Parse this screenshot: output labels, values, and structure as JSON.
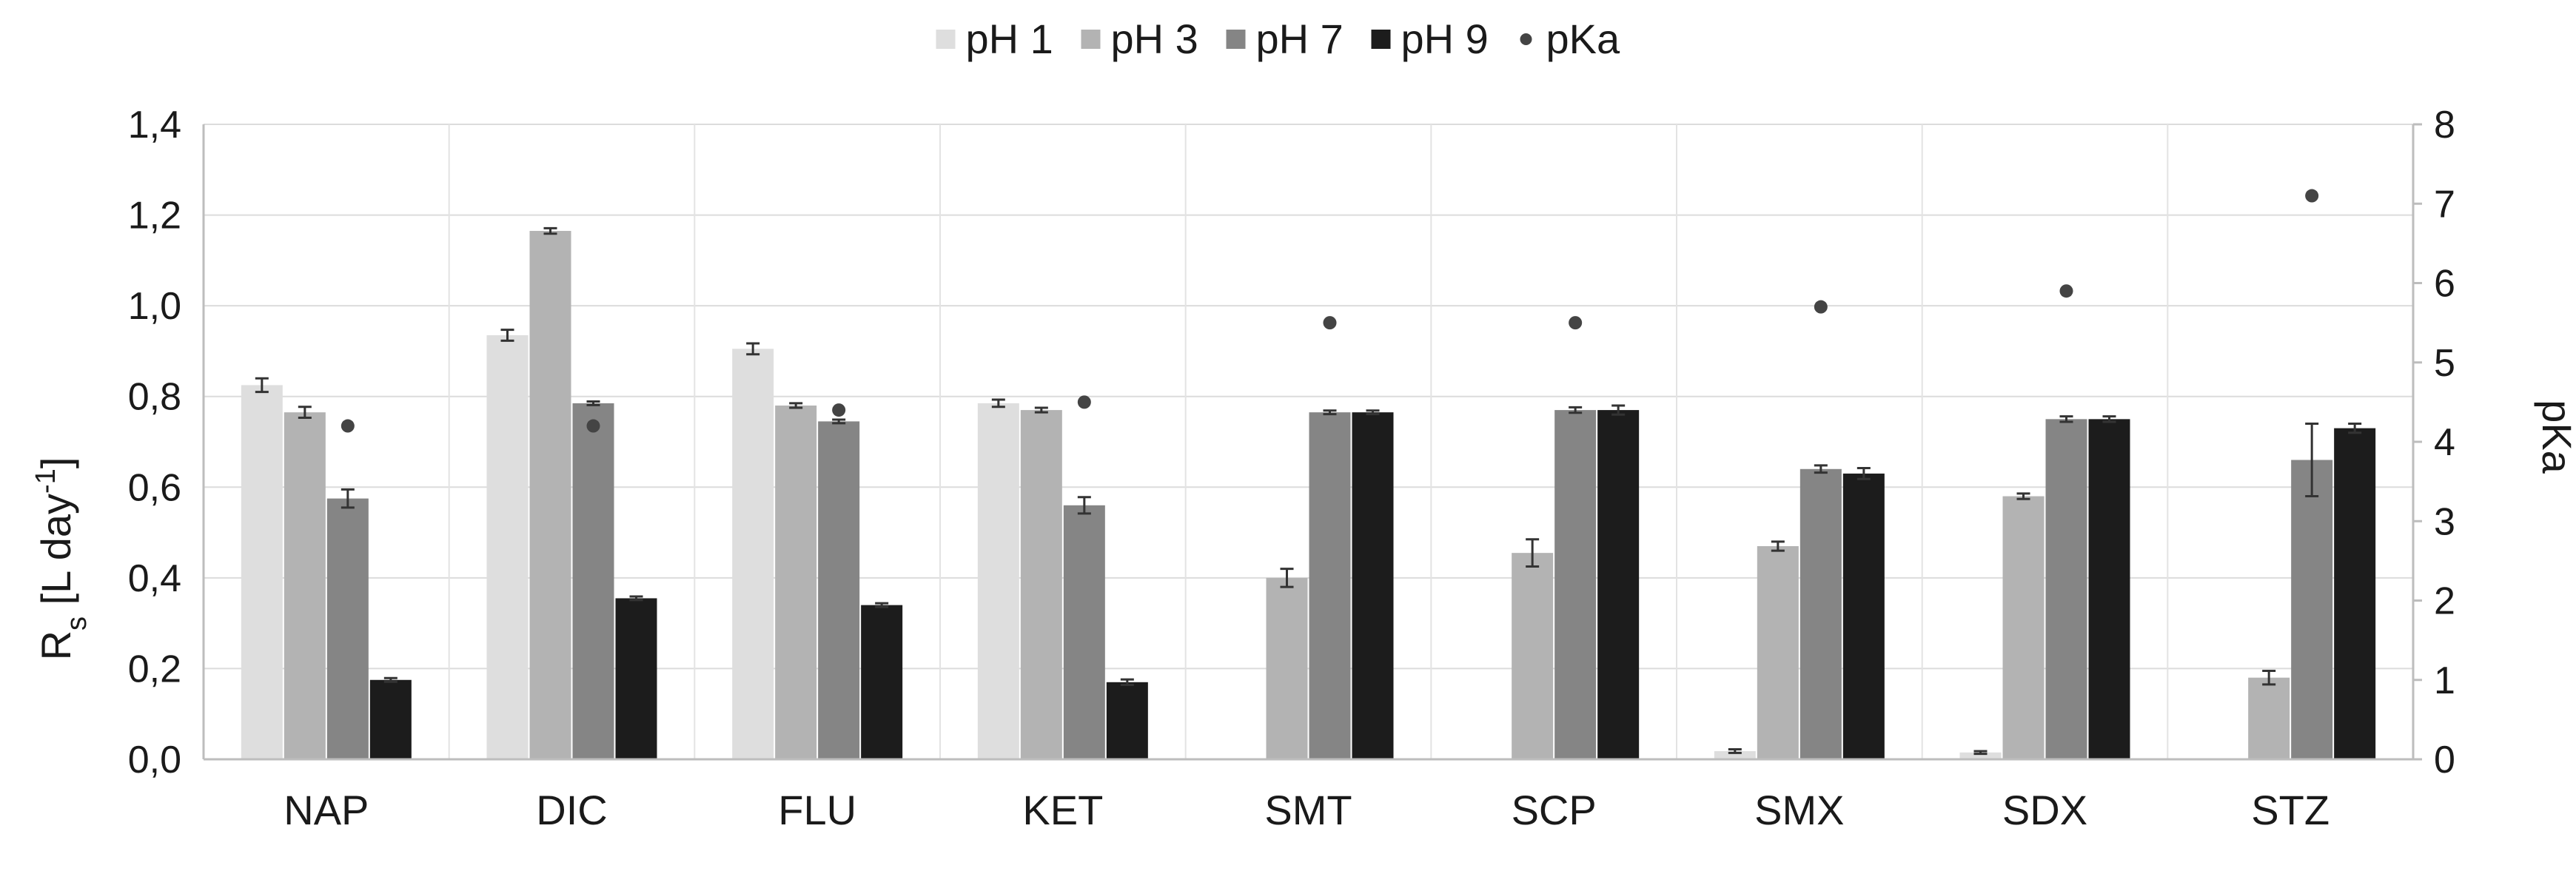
{
  "chart_data": {
    "type": "bar",
    "categories": [
      "NAP",
      "DIC",
      "FLU",
      "KET",
      "SMT",
      "SCP",
      "SMX",
      "SDX",
      "STZ"
    ],
    "series": [
      {
        "name": "pH 1",
        "color": "#dedede",
        "values": [
          0.825,
          0.935,
          0.905,
          0.785,
          null,
          null,
          0.018,
          0.015,
          null
        ],
        "errors": [
          0.015,
          0.012,
          0.012,
          0.008,
          null,
          null,
          0.004,
          0.003,
          null
        ]
      },
      {
        "name": "pH 3",
        "color": "#b3b3b3",
        "values": [
          0.765,
          1.165,
          0.78,
          0.77,
          0.4,
          0.455,
          0.47,
          0.58,
          0.18
        ],
        "errors": [
          0.012,
          0.006,
          0.005,
          0.005,
          0.02,
          0.03,
          0.01,
          0.006,
          0.015
        ]
      },
      {
        "name": "pH 7",
        "color": "#858585",
        "values": [
          0.575,
          0.785,
          0.745,
          0.56,
          0.765,
          0.77,
          0.64,
          0.75,
          0.66
        ],
        "errors": [
          0.02,
          0.004,
          0.004,
          0.018,
          0.004,
          0.006,
          0.008,
          0.006,
          0.08
        ]
      },
      {
        "name": "pH 9",
        "color": "#1c1c1c",
        "values": [
          0.175,
          0.355,
          0.34,
          0.17,
          0.765,
          0.77,
          0.63,
          0.75,
          0.73
        ],
        "errors": [
          0.004,
          0.004,
          0.004,
          0.006,
          0.004,
          0.01,
          0.012,
          0.006,
          0.01
        ]
      }
    ],
    "pka": {
      "name": "pKa",
      "color": "#444444",
      "values": [
        4.2,
        4.2,
        4.4,
        4.5,
        5.5,
        5.5,
        5.7,
        5.9,
        7.1
      ]
    },
    "y_left": {
      "label": "Rs [L day-1]",
      "label_main": "R",
      "label_sub": "s",
      "label_mid": " [L day",
      "label_sup": "-1",
      "label_end": "]",
      "min": 0,
      "max": 1.4,
      "ticks": [
        "0,0",
        "0,2",
        "0,4",
        "0,6",
        "0,8",
        "1,0",
        "1,2",
        "1,4"
      ]
    },
    "y_right": {
      "label": "pKa",
      "min": 0,
      "max": 8,
      "ticks": [
        "0",
        "1",
        "2",
        "3",
        "4",
        "5",
        "6",
        "7",
        "8"
      ]
    },
    "legend": {
      "position": "top-center",
      "entries": [
        "pH 1",
        "pH 3",
        "pH 7",
        "pH 9",
        "pKa"
      ]
    },
    "grid": true
  }
}
